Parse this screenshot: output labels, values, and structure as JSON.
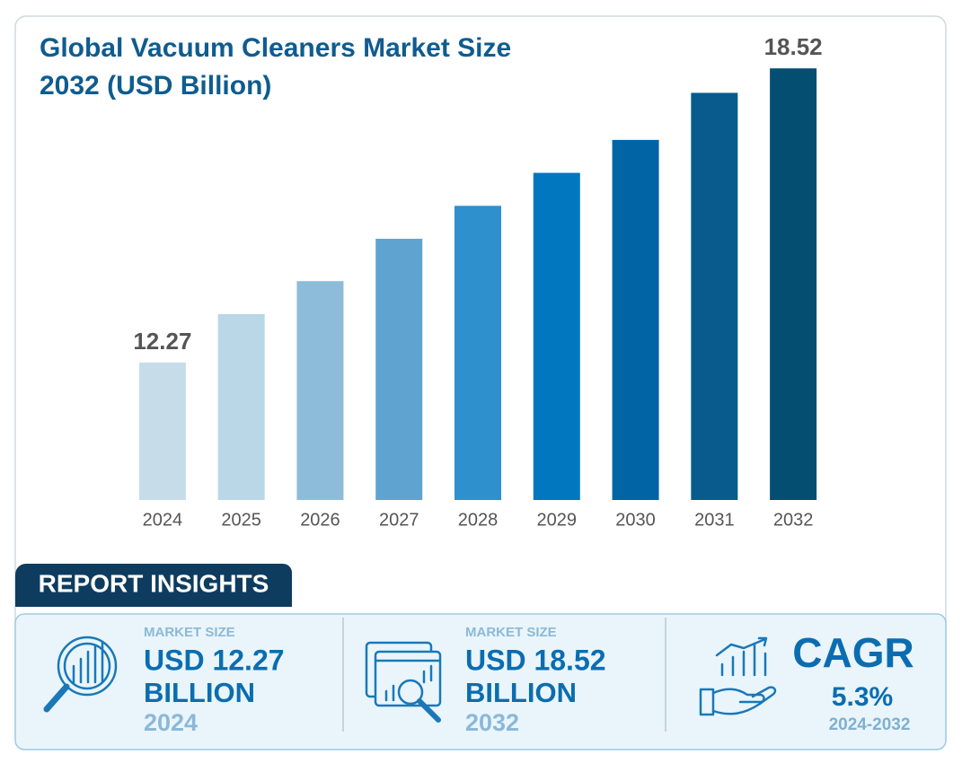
{
  "chart_data": {
    "type": "bar",
    "title": "Global Vacuum Cleaners Market Size 2032 (USD Billion)",
    "categories": [
      "2024",
      "2025",
      "2026",
      "2027",
      "2028",
      "2029",
      "2030",
      "2031",
      "2032"
    ],
    "values": [
      12.27,
      13.3,
      14.0,
      14.9,
      15.6,
      16.3,
      17.0,
      18.0,
      18.52
    ],
    "value_labels": [
      "12.27",
      null,
      null,
      null,
      null,
      null,
      null,
      null,
      "18.52"
    ],
    "colors": [
      "#c6dde9",
      "#bad7e8",
      "#8dbcda",
      "#5fa4d0",
      "#2e90cd",
      "#0077bf",
      "#0064a5",
      "#075b8d",
      "#044e72"
    ],
    "ylim": [
      9.35,
      19
    ],
    "grid": false
  },
  "insights": {
    "title": "REPORT INSIGHTS",
    "cards": [
      {
        "label": "MARKET SIZE",
        "value": "USD 12.27",
        "unit": "BILLION",
        "year": "2024"
      },
      {
        "label": "MARKET SIZE",
        "value": "USD 18.52",
        "unit": "BILLION",
        "year": "2032"
      }
    ],
    "cagr": {
      "label": "CAGR",
      "value": "5.3%",
      "period": "2024-2032"
    }
  }
}
